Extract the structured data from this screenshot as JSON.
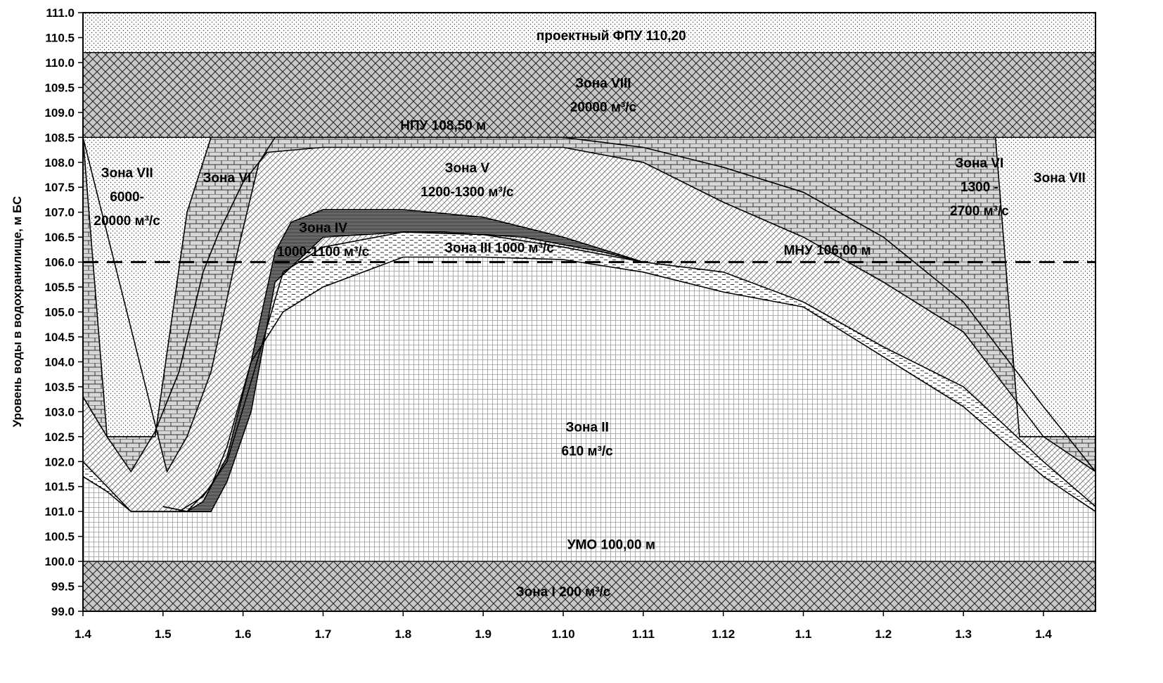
{
  "chart_data": {
    "type": "area",
    "title": "",
    "xlabel": "",
    "ylabel": "Уровень воды в водохранилище, м БС",
    "ylim": [
      99.0,
      111.0
    ],
    "ytick_step": 0.5,
    "x_tick_labels": [
      "1.4",
      "1.5",
      "1.6",
      "1.7",
      "1.8",
      "1.9",
      "1.10",
      "1.11",
      "1.12",
      "1.1",
      "1.2",
      "1.3",
      "1.4"
    ],
    "x_range": [
      0,
      12.65
    ],
    "grid": false,
    "reference_lines": [
      {
        "name": "МНУ",
        "value": 106.0,
        "style": "dashed"
      },
      {
        "name": "НПУ",
        "value": 108.5,
        "style": "solid"
      },
      {
        "name": "УМО",
        "value": 100.0,
        "style": "solid"
      },
      {
        "name": "ФПУ",
        "value": 110.2,
        "style": "solid"
      }
    ],
    "boundaries": {
      "b1": {
        "x": [
          0,
          0.3,
          0.6,
          0.9,
          1.3,
          1.6,
          1.8,
          2.1,
          2.5,
          3,
          4,
          5,
          6,
          7,
          8,
          9,
          10,
          11,
          12,
          12.65
        ],
        "y": [
          101.7,
          101.4,
          101.0,
          101.0,
          101.0,
          101.5,
          102.3,
          104.0,
          105.0,
          105.5,
          106.1,
          106.1,
          106.05,
          105.8,
          105.4,
          105.1,
          104.1,
          103.1,
          101.7,
          101.0
        ]
      },
      "b2": {
        "x": [
          0,
          0.3,
          0.6,
          0.9,
          1.2,
          1.5,
          1.8,
          2.1,
          2.5,
          3,
          4,
          5,
          6,
          7,
          8,
          9,
          10,
          11,
          12,
          12.65
        ],
        "y": [
          102.0,
          101.5,
          101.0,
          101.0,
          101.0,
          101.3,
          102.0,
          103.6,
          105.8,
          106.3,
          106.6,
          106.55,
          106.3,
          106.0,
          105.8,
          105.2,
          104.3,
          103.5,
          102.0,
          101.1
        ]
      },
      "b3": {
        "x": [
          1.0,
          1.3,
          1.6,
          1.8,
          2.1,
          2.4,
          3.0,
          3.5,
          4.0,
          4.5,
          5.0,
          5.5,
          6.0,
          6.5,
          7.0
        ],
        "y": [
          101.1,
          101.0,
          101.0,
          101.6,
          103.0,
          105.6,
          106.5,
          106.55,
          106.6,
          106.6,
          106.55,
          106.5,
          106.35,
          106.2,
          106.0
        ]
      },
      "b4": {
        "x": [
          1.0,
          1.3,
          1.5,
          1.8,
          2.1,
          2.4,
          2.6,
          3.0,
          4.0,
          5.0,
          6.0,
          6.7,
          7.0
        ],
        "y": [
          101.1,
          101.0,
          101.2,
          102.1,
          104.0,
          106.2,
          106.8,
          107.05,
          107.05,
          106.9,
          106.5,
          106.15,
          106.0
        ]
      },
      "b5": {
        "x": [
          0,
          0.3,
          0.6,
          0.9,
          1.2,
          1.5,
          1.7,
          2.0,
          2.3,
          3,
          4,
          5,
          6,
          7,
          8,
          9,
          10,
          11,
          12,
          12.65
        ],
        "y": [
          103.3,
          102.5,
          101.8,
          102.6,
          103.8,
          105.8,
          106.6,
          107.6,
          108.2,
          108.3,
          108.3,
          108.3,
          108.3,
          108.0,
          107.2,
          106.5,
          105.6,
          104.6,
          102.5,
          101.8
        ]
      },
      "b6": {
        "x": [
          0,
          1.05,
          1.3,
          1.6,
          1.9,
          2.2,
          2.4,
          3,
          4,
          5,
          6,
          6.5,
          7,
          8,
          9,
          10,
          11,
          12,
          12.65
        ],
        "y": [
          108.5,
          101.8,
          102.5,
          103.8,
          106.0,
          108.0,
          108.5,
          108.5,
          108.5,
          108.5,
          108.5,
          108.4,
          108.3,
          107.9,
          107.4,
          106.5,
          105.2,
          103.1,
          101.8
        ]
      },
      "b7": {
        "x": [
          0,
          0.3,
          0.9,
          1.3,
          1.6
        ],
        "y": [
          108.5,
          102.5,
          102.5,
          107.0,
          108.5
        ]
      },
      "b8": {
        "x": [
          11.4,
          11.7,
          12.2,
          12.65
        ],
        "y": [
          108.5,
          102.5,
          102.5,
          102.5
        ]
      }
    },
    "zones": [
      {
        "name": "Зона I",
        "lines": [
          "Зона I 200 м³/с"
        ]
      },
      {
        "name": "Зона II",
        "lines": [
          "Зона II",
          "610 м³/с"
        ]
      },
      {
        "name": "Зона III",
        "lines": [
          "Зона III 1000 м³/с"
        ]
      },
      {
        "name": "Зона IV",
        "lines": [
          "Зона IV",
          "1000-1100 м³/с"
        ]
      },
      {
        "name": "Зона V",
        "lines": [
          "Зона V",
          "1200-1300 м³/с"
        ]
      },
      {
        "name": "Зона VI",
        "lines": [
          "Зона VI"
        ]
      },
      {
        "name": "Зона VI",
        "lines": [
          "Зона VI",
          "1300 -",
          "2700 м³/с"
        ]
      },
      {
        "name": "Зона VII",
        "lines": [
          "Зона VII",
          "6000-",
          "20000 м³/с"
        ]
      },
      {
        "name": "Зона VII",
        "lines": [
          "Зона VII"
        ]
      },
      {
        "name": "Зона VIII",
        "lines": [
          "Зона VIII",
          "20000 м³/с"
        ]
      }
    ],
    "annotations": [
      {
        "text": "проектный ФПУ 110,20"
      },
      {
        "text": "НПУ 108,50 м"
      },
      {
        "text": "МНУ 106,00 м"
      },
      {
        "text": "УМО 100,00 м"
      }
    ]
  }
}
